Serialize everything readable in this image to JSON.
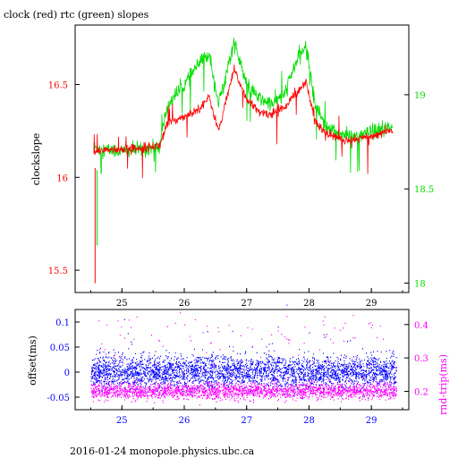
{
  "page": {
    "title": "clock (red) rtc (green) slopes",
    "footer": "2016-01-24 monopole.physics.ubc.ca"
  },
  "colors": {
    "clock": "#ff0000",
    "rtc": "#00dd00",
    "offset": "#0000ff",
    "rndtrip": "#ff00ff",
    "axis": "#000000"
  },
  "chart_data": [
    {
      "type": "line",
      "title": "clock (red) rtc (green) slopes",
      "xlabel": "",
      "ylabel": "clockslope",
      "y2label": "",
      "xlim": [
        24.25,
        29.6
      ],
      "ylim": [
        15.38,
        16.82
      ],
      "y2lim": [
        17.95,
        19.37
      ],
      "x_ticks": [
        "25",
        "26",
        "27",
        "28",
        "29"
      ],
      "y_ticks": [
        "15.5",
        "16",
        "16.5"
      ],
      "y2_ticks": [
        "18",
        "18.5",
        "19"
      ],
      "grid": false,
      "series": [
        {
          "name": "clock",
          "axis": "left",
          "color": "#ff0000",
          "x": [
            24.55,
            24.7,
            25.0,
            25.3,
            25.6,
            25.7,
            25.8,
            26.0,
            26.2,
            26.4,
            26.55,
            26.7,
            26.8,
            27.0,
            27.2,
            27.4,
            27.6,
            27.8,
            27.95,
            28.1,
            28.3,
            28.6,
            28.8,
            29.0,
            29.3
          ],
          "values": [
            16.13,
            16.15,
            16.15,
            16.16,
            16.17,
            16.27,
            16.3,
            16.33,
            16.36,
            16.43,
            16.25,
            16.45,
            16.58,
            16.42,
            16.35,
            16.34,
            16.38,
            16.45,
            16.52,
            16.3,
            16.23,
            16.2,
            16.21,
            16.22,
            16.25
          ]
        },
        {
          "name": "rtc",
          "axis": "right",
          "color": "#00dd00",
          "x": [
            24.55,
            24.7,
            25.0,
            25.3,
            25.6,
            25.7,
            25.8,
            26.0,
            26.2,
            26.4,
            26.55,
            26.7,
            26.8,
            27.0,
            27.2,
            27.4,
            27.6,
            27.8,
            27.95,
            28.1,
            28.3,
            28.6,
            28.8,
            29.0,
            29.3
          ],
          "values": [
            18.72,
            18.71,
            18.7,
            18.71,
            18.72,
            18.9,
            18.98,
            19.05,
            19.15,
            19.22,
            18.95,
            19.15,
            19.28,
            19.05,
            18.98,
            18.95,
            19.0,
            19.18,
            19.26,
            18.95,
            18.82,
            18.78,
            18.78,
            18.8,
            18.82
          ]
        }
      ]
    },
    {
      "type": "scatter",
      "title": "",
      "xlabel": "",
      "ylabel": "offset(ms)",
      "y2label": "rnd-trip(ms)",
      "xlim": [
        24.25,
        29.6
      ],
      "ylim": [
        -0.075,
        0.125
      ],
      "y2lim": [
        0.145,
        0.445
      ],
      "x_ticks": [
        "25",
        "26",
        "27",
        "28",
        "29"
      ],
      "y_ticks": [
        "-0.05",
        "0",
        "0.05",
        "0.1"
      ],
      "y2_ticks": [
        "0.2",
        "0.3",
        "0.4"
      ],
      "grid": false,
      "series": [
        {
          "name": "offset",
          "axis": "left",
          "color": "#0000ff",
          "x_range": [
            24.5,
            29.4
          ],
          "center": 0.0,
          "spread": 0.03
        },
        {
          "name": "rnd-trip",
          "axis": "right",
          "color": "#ff00ff",
          "x_range": [
            24.5,
            29.4
          ],
          "center": 0.2,
          "spread": 0.02
        }
      ]
    }
  ]
}
